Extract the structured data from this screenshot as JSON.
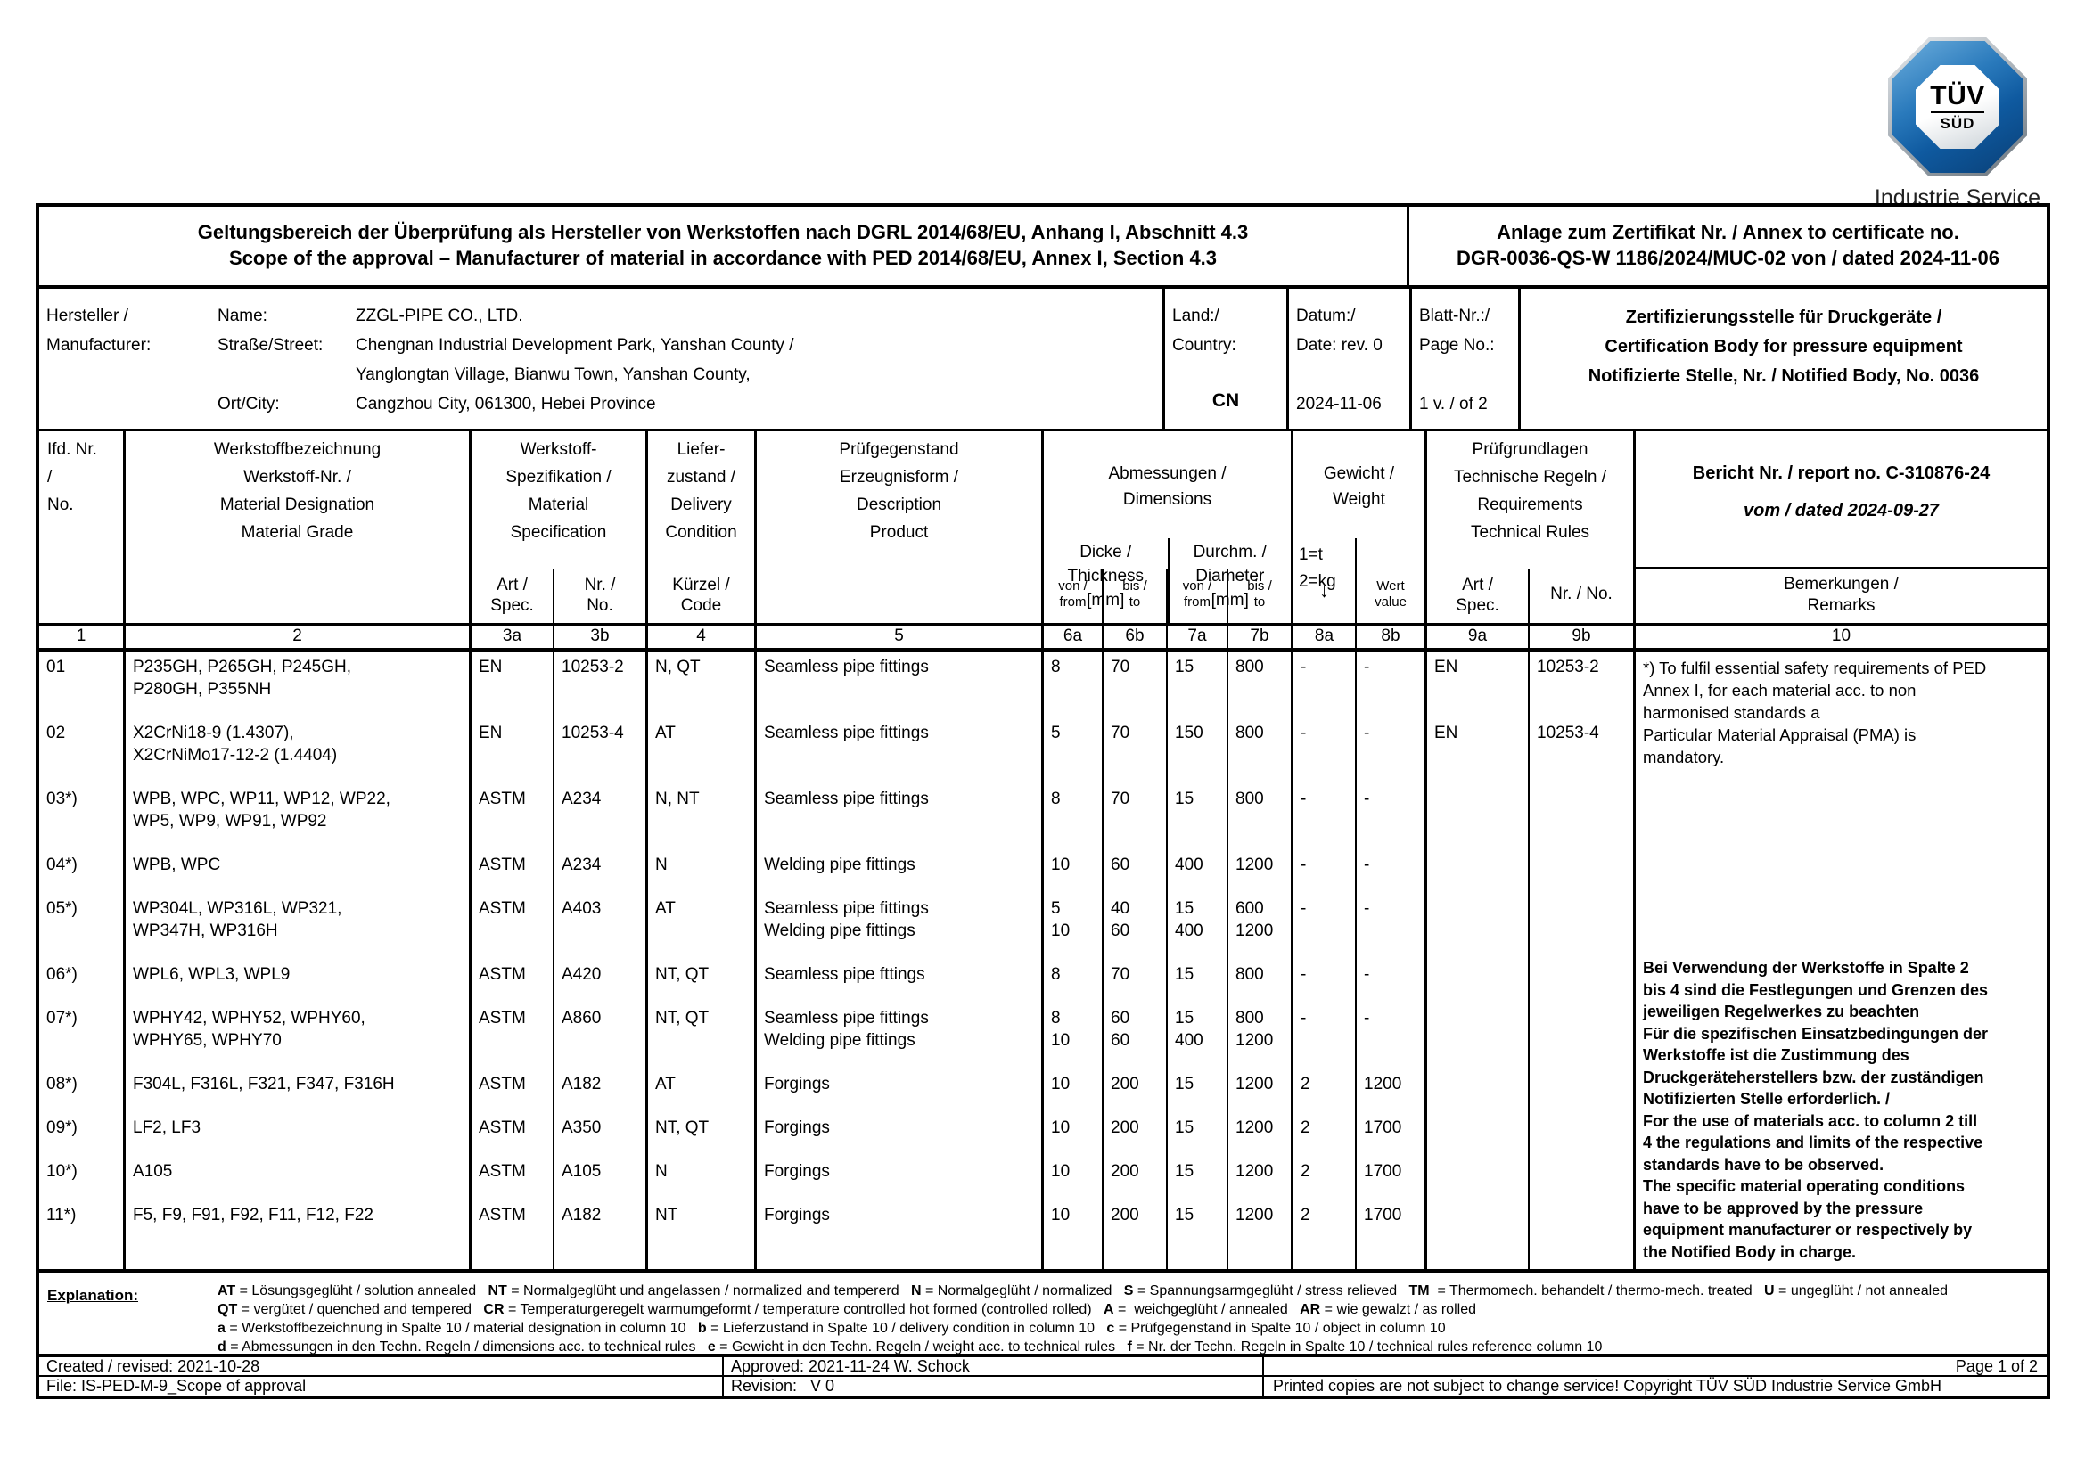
{
  "logo": {
    "tuv": "TÜV",
    "sud": "SÜD",
    "subtitle": "Industrie Service"
  },
  "header": {
    "scope_de": "Geltungsbereich der Überprüfung als Hersteller von Werkstoffen nach DGRL 2014/68/EU, Anhang I, Abschnitt 4.3",
    "scope_en": "Scope of the approval – Manufacturer of material in accordance with PED 2014/68/EU, Annex I, Section 4.3",
    "annex_label": "Anlage zum Zertifikat Nr. / Annex to certificate no.",
    "annex_no": "DGR-0036-QS-W 1186/2024/MUC-02 von / dated 2024-11-06"
  },
  "manufacturer": {
    "label_de": "Hersteller /",
    "label_en": "Manufacturer:",
    "name_label": "Name:",
    "name": "ZZGL-PIPE CO., LTD.",
    "street_label": "Straße/Street:",
    "street1": "Chengnan Industrial Development Park, Yanshan County /",
    "street2": "Yanglongtan Village, Bianwu Town, Yanshan County,",
    "city_label": "Ort/City:",
    "city": "Cangzhou City, 061300, Hebei Province",
    "country_label_de": "Land:/",
    "country_label_en": "Country:",
    "country": "CN",
    "date_label_de": "Datum:/",
    "date_label_en": "Date: rev. 0",
    "date": "2024-11-06",
    "sheet_label_de": "Blatt-Nr.:/",
    "sheet_label_en": "Page No.:",
    "sheet": "1 v. / of 2",
    "cert_body_1": "Zertifizierungsstelle für Druckgeräte /",
    "cert_body_2": "Certification Body for pressure equipment",
    "cert_body_3": "Notifizierte Stelle, Nr. / Notified Body, No. 0036"
  },
  "table": {
    "head": {
      "col1": [
        "Ifd. Nr.",
        "/",
        "No."
      ],
      "col2": [
        "Werkstoffbezeichnung",
        "Werkstoff-Nr. /",
        "Material Designation",
        "Material Grade"
      ],
      "col3": [
        "Werkstoff-",
        "Spezifikation /",
        "Material",
        "Specification"
      ],
      "col3a_sub": [
        "Art /",
        "Spec."
      ],
      "col3b_sub": [
        "Nr. /",
        "No."
      ],
      "col4": [
        "Liefer-",
        "zustand /",
        "Delivery",
        "Condition"
      ],
      "col4_sub": [
        "Kürzel /",
        "Code"
      ],
      "col5": [
        "Prüfgegenstand",
        "Erzeugnisform /",
        "Description",
        "Product"
      ],
      "dims": [
        "Abmessungen /",
        "Dimensions"
      ],
      "thickness": [
        "Dicke /",
        "Thickness",
        "[mm]"
      ],
      "diameter": [
        "Durchm. /",
        "Diameter",
        "[mm]"
      ],
      "from_label": [
        "von /",
        "from"
      ],
      "to_label": [
        "bis /",
        "to"
      ],
      "weight": [
        "Gewicht /",
        "Weight"
      ],
      "weight_units": [
        "1=t",
        "2=kg"
      ],
      "arrow": "↓",
      "wert": [
        "Wert",
        "value"
      ],
      "col9": [
        "Prüfgrundlagen",
        "Technische Regeln /",
        "Requirements",
        "Technical Rules"
      ],
      "col9a_sub": [
        "Art /",
        "Spec."
      ],
      "col9b_sub": [
        "Nr. / No."
      ],
      "report_line1": "Bericht Nr. / report no. C-310876-24",
      "report_line2": "vom / dated 2024-09-27",
      "remarks_label": [
        "Bemerkungen /",
        "Remarks"
      ],
      "numbers": [
        "1",
        "2",
        "3a",
        "3b",
        "4",
        "5",
        "6a",
        "6b",
        "7a",
        "7b",
        "8a",
        "8b",
        "9a",
        "9b",
        "10"
      ]
    },
    "rows": [
      {
        "no": "01",
        "material": [
          "P235GH, P265GH, P245GH,",
          "P280GH, P355NH"
        ],
        "spec_art": "EN",
        "spec_no": "10253-2",
        "delivery": "N, QT",
        "product": [
          "Seamless pipe fittings"
        ],
        "t_from": [
          "8"
        ],
        "t_to": [
          "70"
        ],
        "d_from": [
          "15"
        ],
        "d_to": [
          "800"
        ],
        "w_unit": [
          "-"
        ],
        "w_val": [
          "-"
        ],
        "rule_art": "EN",
        "rule_no": "10253-2"
      },
      {
        "no": "02",
        "material": [
          "X2CrNi18-9 (1.4307),",
          "X2CrNiMo17-12-2 (1.4404)"
        ],
        "spec_art": "EN",
        "spec_no": "10253-4",
        "delivery": "AT",
        "product": [
          "Seamless pipe fittings"
        ],
        "t_from": [
          "5"
        ],
        "t_to": [
          "70"
        ],
        "d_from": [
          "150"
        ],
        "d_to": [
          "800"
        ],
        "w_unit": [
          "-"
        ],
        "w_val": [
          "-"
        ],
        "rule_art": "EN",
        "rule_no": "10253-4"
      },
      {
        "no": "03*)",
        "material": [
          "WPB, WPC, WP11, WP12, WP22,",
          "WP5, WP9, WP91, WP92"
        ],
        "spec_art": "ASTM",
        "spec_no": "A234",
        "delivery": "N, NT",
        "product": [
          "Seamless pipe fittings"
        ],
        "t_from": [
          "8"
        ],
        "t_to": [
          "70"
        ],
        "d_from": [
          "15"
        ],
        "d_to": [
          "800"
        ],
        "w_unit": [
          "-"
        ],
        "w_val": [
          "-"
        ],
        "rule_art": "",
        "rule_no": ""
      },
      {
        "no": "04*)",
        "material": [
          "WPB, WPC"
        ],
        "spec_art": "ASTM",
        "spec_no": "A234",
        "delivery": "N",
        "product": [
          "Welding pipe fittings"
        ],
        "t_from": [
          "10"
        ],
        "t_to": [
          "60"
        ],
        "d_from": [
          "400"
        ],
        "d_to": [
          "1200"
        ],
        "w_unit": [
          "-"
        ],
        "w_val": [
          "-"
        ],
        "rule_art": "",
        "rule_no": ""
      },
      {
        "no": "05*)",
        "material": [
          "WP304L, WP316L, WP321,",
          "WP347H, WP316H"
        ],
        "spec_art": "ASTM",
        "spec_no": "A403",
        "delivery": "AT",
        "product": [
          "Seamless pipe fittings",
          "Welding pipe fittings"
        ],
        "t_from": [
          "5",
          "10"
        ],
        "t_to": [
          "40",
          "60"
        ],
        "d_from": [
          "15",
          "400"
        ],
        "d_to": [
          "600",
          "1200"
        ],
        "w_unit": [
          "-"
        ],
        "w_val": [
          "-"
        ],
        "rule_art": "",
        "rule_no": ""
      },
      {
        "no": "06*)",
        "material": [
          "WPL6, WPL3, WPL9"
        ],
        "spec_art": "ASTM",
        "spec_no": "A420",
        "delivery": "NT, QT",
        "product": [
          "Seamless pipe fttings"
        ],
        "t_from": [
          "8"
        ],
        "t_to": [
          "70"
        ],
        "d_from": [
          "15"
        ],
        "d_to": [
          "800"
        ],
        "w_unit": [
          "-"
        ],
        "w_val": [
          "-"
        ],
        "rule_art": "",
        "rule_no": ""
      },
      {
        "no": "07*)",
        "material": [
          "WPHY42, WPHY52, WPHY60,",
          "WPHY65, WPHY70"
        ],
        "spec_art": "ASTM",
        "spec_no": "A860",
        "delivery": "NT, QT",
        "product": [
          "Seamless pipe fittings",
          "Welding pipe fittings"
        ],
        "t_from": [
          "8",
          "10"
        ],
        "t_to": [
          "60",
          "60"
        ],
        "d_from": [
          "15",
          "400"
        ],
        "d_to": [
          "800",
          "1200"
        ],
        "w_unit": [
          "-"
        ],
        "w_val": [
          "-"
        ],
        "rule_art": "",
        "rule_no": ""
      },
      {
        "no": "08*)",
        "material": [
          "F304L, F316L, F321, F347, F316H"
        ],
        "spec_art": "ASTM",
        "spec_no": "A182",
        "delivery": "AT",
        "product": [
          "Forgings"
        ],
        "t_from": [
          "10"
        ],
        "t_to": [
          "200"
        ],
        "d_from": [
          "15"
        ],
        "d_to": [
          "1200"
        ],
        "w_unit": [
          "2"
        ],
        "w_val": [
          "1200"
        ],
        "rule_art": "",
        "rule_no": ""
      },
      {
        "no": "09*)",
        "material": [
          "LF2, LF3"
        ],
        "spec_art": "ASTM",
        "spec_no": "A350",
        "delivery": "NT, QT",
        "product": [
          "Forgings"
        ],
        "t_from": [
          "10"
        ],
        "t_to": [
          "200"
        ],
        "d_from": [
          "15"
        ],
        "d_to": [
          "1200"
        ],
        "w_unit": [
          "2"
        ],
        "w_val": [
          "1700"
        ],
        "rule_art": "",
        "rule_no": ""
      },
      {
        "no": "10*)",
        "material": [
          "A105"
        ],
        "spec_art": "ASTM",
        "spec_no": "A105",
        "delivery": "N",
        "product": [
          "Forgings"
        ],
        "t_from": [
          "10"
        ],
        "t_to": [
          "200"
        ],
        "d_from": [
          "15"
        ],
        "d_to": [
          "1200"
        ],
        "w_unit": [
          "2"
        ],
        "w_val": [
          "1700"
        ],
        "rule_art": "",
        "rule_no": ""
      },
      {
        "no": "11*)",
        "material": [
          "F5, F9, F91, F92, F11, F12, F22"
        ],
        "spec_art": "ASTM",
        "spec_no": "A182",
        "delivery": "NT",
        "product": [
          "Forgings"
        ],
        "t_from": [
          "10"
        ],
        "t_to": [
          "200"
        ],
        "d_from": [
          "15"
        ],
        "d_to": [
          "1200"
        ],
        "w_unit": [
          "2"
        ],
        "w_val": [
          "1700"
        ],
        "rule_art": "",
        "rule_no": ""
      }
    ],
    "remarks_top": [
      "*) To fulfil essential safety requirements of PED",
      "Annex I, for each material acc. to non",
      "harmonised standards a",
      "Particular Material Appraisal (PMA) is",
      "mandatory."
    ],
    "remarks_bold": [
      "Bei Verwendung der Werkstoffe in Spalte 2",
      "bis 4 sind die Festlegungen und Grenzen des",
      "jeweiligen Regelwerkes zu beachten",
      "Für die spezifischen Einsatzbedingungen der",
      "Werkstoffe ist die Zustimmung des",
      "Druckgeräteherstellers bzw. der zuständigen",
      "Notifizierten Stelle erforderlich. /",
      "For the use of materials acc. to column 2 till",
      "4 the regulations and limits of the respective",
      "standards have to be observed.",
      "The specific material operating conditions",
      "have to be approved by the pressure",
      "equipment manufacturer or respectively by",
      "the Notified Body in charge."
    ]
  },
  "explanation": {
    "label": "Explanation:",
    "lines": [
      [
        [
          "AT",
          " = Lösungsgeglüht / solution annealed   "
        ],
        [
          "NT",
          " = Normalgeglüht und angelassen / normalized and tempererd   "
        ],
        [
          "N",
          " = Normalgeglüht / normalized   "
        ],
        [
          "S",
          " = Spannungsarmgeglüht / stress relieved   "
        ],
        [
          "TM",
          "  = Thermomech. behandelt / thermo-mech. treated   "
        ],
        [
          "U",
          " = ungeglüht / not annealed"
        ]
      ],
      [
        [
          "QT",
          " = vergütet / quenched and tempered   "
        ],
        [
          "CR",
          " = Temperaturgeregelt warmumgeformt / temperature controlled hot formed (controlled rolled)   "
        ],
        [
          "A",
          " =  weichgeglüht / annealed   "
        ],
        [
          "AR",
          " = wie gewalzt / as rolled"
        ]
      ],
      [
        [
          "a",
          " = Werkstoffbezeichnung in Spalte 10 / material designation in column 10   "
        ],
        [
          "b",
          " = Lieferzustand in Spalte 10 / delivery condition in column 10   "
        ],
        [
          "c",
          " = Prüfgegenstand in Spalte 10 / object in column 10"
        ]
      ],
      [
        [
          "d",
          " = Abmessungen in den Techn. Regeln / dimensions acc. to technical rules   "
        ],
        [
          "e",
          " = Gewicht in den Techn. Regeln / weight acc. to technical rules   "
        ],
        [
          "f",
          " = Nr. der Techn. Regeln in Spalte 10 / technical rules reference column 10"
        ]
      ]
    ]
  },
  "footer": {
    "created": "Created / revised: 2021-10-28",
    "approved": "Approved: 2021-11-24 W. Schock",
    "page": "Page 1 of 2",
    "file": "File: IS-PED-M-9_Scope of approval",
    "revision": "Revision:   V 0",
    "copyright": "Printed copies are not subject to change service! Copyright TÜV SÜD Industrie Service GmbH"
  }
}
